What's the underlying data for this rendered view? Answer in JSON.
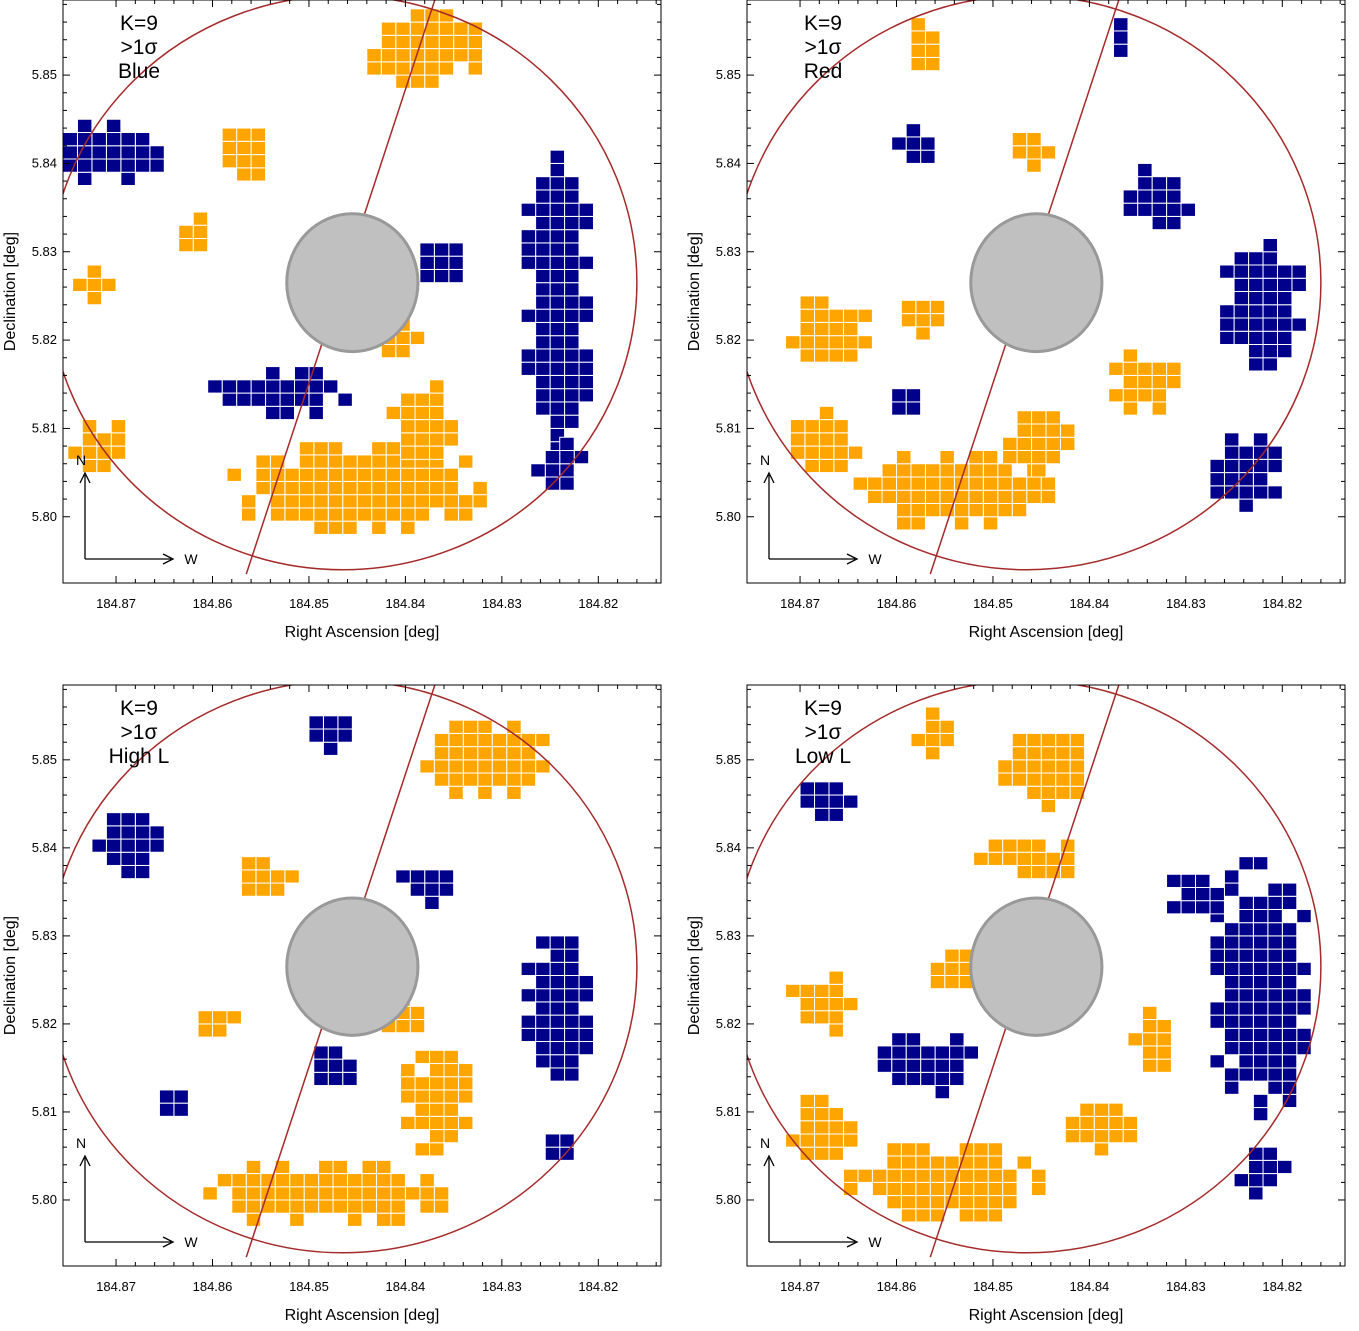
{
  "figure": {
    "background": "#ffffff",
    "colors": {
      "positive_cells": "#ffa500",
      "negative_cells": "#00008b",
      "cell_border": "#ffffff",
      "outline": "#a52a2a",
      "mask": "#c0c0c0",
      "mask_edge": "#999999",
      "axes": "#000000"
    }
  },
  "chart_data": [
    {
      "type": "heatmap",
      "panel": "top-left",
      "annotation": [
        "K=9",
        ">1σ",
        "Blue"
      ],
      "xlabel": "Right Ascension [deg]",
      "ylabel": "Declination [deg]",
      "xlim": [
        184.8755,
        184.8135
      ],
      "ylim": [
        5.7925,
        5.8585
      ],
      "x_ticks": [
        "184.87",
        "184.86",
        "184.85",
        "184.84",
        "184.83",
        "184.82"
      ],
      "y_ticks": [
        "5.80",
        "5.81",
        "5.82",
        "5.83",
        "5.84",
        "5.85"
      ],
      "compass": {
        "north": "N",
        "west": "W"
      },
      "regions": [
        {
          "sign": "positive",
          "center_ra": 184.845,
          "center_dec": 5.803,
          "width_ra": 0.027,
          "height_dec": 0.01
        },
        {
          "sign": "positive",
          "center_ra": 184.871,
          "center_dec": 5.808,
          "width_ra": 0.007,
          "height_dec": 0.006
        },
        {
          "sign": "positive",
          "center_ra": 184.838,
          "center_dec": 5.853,
          "width_ra": 0.012,
          "height_dec": 0.009
        },
        {
          "sign": "positive",
          "center_ra": 184.857,
          "center_dec": 5.841,
          "width_ra": 0.005,
          "height_dec": 0.009
        },
        {
          "sign": "positive",
          "center_ra": 184.838,
          "center_dec": 5.81,
          "width_ra": 0.007,
          "height_dec": 0.01
        },
        {
          "sign": "positive",
          "center_ra": 184.862,
          "center_dec": 5.832,
          "width_ra": 0.003,
          "height_dec": 0.004
        },
        {
          "sign": "positive",
          "center_ra": 184.872,
          "center_dec": 5.826,
          "width_ra": 0.004,
          "height_dec": 0.004
        },
        {
          "sign": "positive",
          "center_ra": 184.84,
          "center_dec": 5.82,
          "width_ra": 0.007,
          "height_dec": 0.004
        },
        {
          "sign": "negative",
          "center_ra": 184.824,
          "center_dec": 5.824,
          "width_ra": 0.007,
          "height_dec": 0.034
        },
        {
          "sign": "negative",
          "center_ra": 184.854,
          "center_dec": 5.814,
          "width_ra": 0.017,
          "height_dec": 0.006
        },
        {
          "sign": "negative",
          "center_ra": 184.87,
          "center_dec": 5.841,
          "width_ra": 0.01,
          "height_dec": 0.007
        },
        {
          "sign": "negative",
          "center_ra": 184.837,
          "center_dec": 5.829,
          "width_ra": 0.006,
          "height_dec": 0.005
        },
        {
          "sign": "negative",
          "center_ra": 184.824,
          "center_dec": 5.806,
          "width_ra": 0.006,
          "height_dec": 0.006
        }
      ],
      "outline": {
        "center_ra": 184.8465,
        "center_dec": 5.8265,
        "radius_ra": 0.0305,
        "radius_dec": 0.0325,
        "line": [
          [
            184.8365,
            5.86
          ],
          [
            184.8565,
            5.7935
          ]
        ]
      },
      "mask": {
        "center_ra": 184.8455,
        "center_dec": 5.8265,
        "radius_ra": 0.0068,
        "radius_dec": 0.0078
      }
    },
    {
      "type": "heatmap",
      "panel": "top-right",
      "annotation": [
        "K=9",
        ">1σ",
        "Red"
      ],
      "xlabel": "Right Ascension [deg]",
      "ylabel": "Declination [deg]",
      "xlim": [
        184.8755,
        184.8135
      ],
      "ylim": [
        5.7925,
        5.8585
      ],
      "x_ticks": [
        "184.87",
        "184.86",
        "184.85",
        "184.84",
        "184.83",
        "184.82"
      ],
      "y_ticks": [
        "5.80",
        "5.81",
        "5.82",
        "5.83",
        "5.84",
        "5.85"
      ],
      "compass": {
        "north": "N",
        "west": "W"
      },
      "regions": [
        {
          "sign": "positive",
          "center_ra": 184.854,
          "center_dec": 5.803,
          "width_ra": 0.021,
          "height_dec": 0.009
        },
        {
          "sign": "positive",
          "center_ra": 184.867,
          "center_dec": 5.809,
          "width_ra": 0.007,
          "height_dec": 0.008
        },
        {
          "sign": "positive",
          "center_ra": 184.845,
          "center_dec": 5.808,
          "width_ra": 0.007,
          "height_dec": 0.007
        },
        {
          "sign": "positive",
          "center_ra": 184.867,
          "center_dec": 5.821,
          "width_ra": 0.009,
          "height_dec": 0.007
        },
        {
          "sign": "positive",
          "center_ra": 184.834,
          "center_dec": 5.815,
          "width_ra": 0.007,
          "height_dec": 0.007
        },
        {
          "sign": "positive",
          "center_ra": 184.857,
          "center_dec": 5.853,
          "width_ra": 0.003,
          "height_dec": 0.008
        },
        {
          "sign": "positive",
          "center_ra": 184.846,
          "center_dec": 5.841,
          "width_ra": 0.005,
          "height_dec": 0.004
        },
        {
          "sign": "positive",
          "center_ra": 184.857,
          "center_dec": 5.822,
          "width_ra": 0.004,
          "height_dec": 0.004
        },
        {
          "sign": "negative",
          "center_ra": 184.822,
          "center_dec": 5.824,
          "width_ra": 0.009,
          "height_dec": 0.015
        },
        {
          "sign": "negative",
          "center_ra": 184.833,
          "center_dec": 5.836,
          "width_ra": 0.008,
          "height_dec": 0.007
        },
        {
          "sign": "negative",
          "center_ra": 184.824,
          "center_dec": 5.805,
          "width_ra": 0.008,
          "height_dec": 0.009
        },
        {
          "sign": "negative",
          "center_ra": 184.837,
          "center_dec": 5.854,
          "width_ra": 0.002,
          "height_dec": 0.004
        },
        {
          "sign": "negative",
          "center_ra": 184.858,
          "center_dec": 5.842,
          "width_ra": 0.004,
          "height_dec": 0.004
        },
        {
          "sign": "negative",
          "center_ra": 184.859,
          "center_dec": 5.813,
          "width_ra": 0.003,
          "height_dec": 0.003
        }
      ],
      "outline": {
        "center_ra": 184.8465,
        "center_dec": 5.8265,
        "radius_ra": 0.0305,
        "radius_dec": 0.0325,
        "line": [
          [
            184.8365,
            5.86
          ],
          [
            184.8565,
            5.7935
          ]
        ]
      },
      "mask": {
        "center_ra": 184.8455,
        "center_dec": 5.8265,
        "radius_ra": 0.0068,
        "radius_dec": 0.0078
      }
    },
    {
      "type": "heatmap",
      "panel": "bottom-left",
      "annotation": [
        "K=9",
        ">1σ",
        "High L"
      ],
      "xlabel": "Right Ascension [deg]",
      "ylabel": "Declination [deg]",
      "xlim": [
        184.8755,
        184.8135
      ],
      "ylim": [
        5.7925,
        5.8585
      ],
      "x_ticks": [
        "184.87",
        "184.86",
        "184.85",
        "184.84",
        "184.83",
        "184.82"
      ],
      "y_ticks": [
        "5.80",
        "5.81",
        "5.82",
        "5.83",
        "5.84",
        "5.85"
      ],
      "compass": {
        "north": "N",
        "west": "W"
      },
      "regions": [
        {
          "sign": "positive",
          "center_ra": 184.848,
          "center_dec": 5.801,
          "width_ra": 0.025,
          "height_dec": 0.008
        },
        {
          "sign": "positive",
          "center_ra": 184.832,
          "center_dec": 5.85,
          "width_ra": 0.014,
          "height_dec": 0.009
        },
        {
          "sign": "positive",
          "center_ra": 184.837,
          "center_dec": 5.811,
          "width_ra": 0.008,
          "height_dec": 0.012
        },
        {
          "sign": "positive",
          "center_ra": 184.855,
          "center_dec": 5.837,
          "width_ra": 0.008,
          "height_dec": 0.005
        },
        {
          "sign": "positive",
          "center_ra": 184.841,
          "center_dec": 5.821,
          "width_ra": 0.006,
          "height_dec": 0.004
        },
        {
          "sign": "positive",
          "center_ra": 184.859,
          "center_dec": 5.82,
          "width_ra": 0.004,
          "height_dec": 0.003
        },
        {
          "sign": "negative",
          "center_ra": 184.824,
          "center_dec": 5.822,
          "width_ra": 0.007,
          "height_dec": 0.017
        },
        {
          "sign": "negative",
          "center_ra": 184.869,
          "center_dec": 5.84,
          "width_ra": 0.008,
          "height_dec": 0.007
        },
        {
          "sign": "negative",
          "center_ra": 184.838,
          "center_dec": 5.836,
          "width_ra": 0.006,
          "height_dec": 0.006
        },
        {
          "sign": "negative",
          "center_ra": 184.848,
          "center_dec": 5.853,
          "width_ra": 0.005,
          "height_dec": 0.005
        },
        {
          "sign": "negative",
          "center_ra": 184.864,
          "center_dec": 5.811,
          "width_ra": 0.003,
          "height_dec": 0.003
        },
        {
          "sign": "negative",
          "center_ra": 184.847,
          "center_dec": 5.815,
          "width_ra": 0.004,
          "height_dec": 0.004
        },
        {
          "sign": "negative",
          "center_ra": 184.824,
          "center_dec": 5.806,
          "width_ra": 0.003,
          "height_dec": 0.003
        }
      ],
      "outline": {
        "center_ra": 184.8465,
        "center_dec": 5.8265,
        "radius_ra": 0.0305,
        "radius_dec": 0.0325,
        "line": [
          [
            184.8365,
            5.86
          ],
          [
            184.8565,
            5.7935
          ]
        ]
      },
      "mask": {
        "center_ra": 184.8455,
        "center_dec": 5.8265,
        "radius_ra": 0.0068,
        "radius_dec": 0.0078
      }
    },
    {
      "type": "heatmap",
      "panel": "bottom-right",
      "annotation": [
        "K=9",
        ">1σ",
        "Low L"
      ],
      "xlabel": "Right Ascension [deg]",
      "ylabel": "Declination [deg]",
      "xlim": [
        184.8755,
        184.8135
      ],
      "ylim": [
        5.7925,
        5.8585
      ],
      "x_ticks": [
        "184.87",
        "184.86",
        "184.85",
        "184.84",
        "184.83",
        "184.82"
      ],
      "y_ticks": [
        "5.80",
        "5.81",
        "5.82",
        "5.83",
        "5.84",
        "5.85"
      ],
      "compass": {
        "north": "N",
        "west": "W"
      },
      "regions": [
        {
          "sign": "positive",
          "center_ra": 184.855,
          "center_dec": 5.802,
          "width_ra": 0.021,
          "height_dec": 0.009
        },
        {
          "sign": "positive",
          "center_ra": 184.868,
          "center_dec": 5.808,
          "width_ra": 0.008,
          "height_dec": 0.007
        },
        {
          "sign": "positive",
          "center_ra": 184.868,
          "center_dec": 5.822,
          "width_ra": 0.008,
          "height_dec": 0.007
        },
        {
          "sign": "positive",
          "center_ra": 184.844,
          "center_dec": 5.849,
          "width_ra": 0.01,
          "height_dec": 0.01
        },
        {
          "sign": "positive",
          "center_ra": 184.846,
          "center_dec": 5.839,
          "width_ra": 0.012,
          "height_dec": 0.005
        },
        {
          "sign": "positive",
          "center_ra": 184.856,
          "center_dec": 5.852,
          "width_ra": 0.004,
          "height_dec": 0.007
        },
        {
          "sign": "positive",
          "center_ra": 184.833,
          "center_dec": 5.818,
          "width_ra": 0.006,
          "height_dec": 0.007
        },
        {
          "sign": "positive",
          "center_ra": 184.839,
          "center_dec": 5.808,
          "width_ra": 0.008,
          "height_dec": 0.006
        },
        {
          "sign": "positive",
          "center_ra": 184.854,
          "center_dec": 5.826,
          "width_ra": 0.004,
          "height_dec": 0.004
        },
        {
          "sign": "negative",
          "center_ra": 184.822,
          "center_dec": 5.824,
          "width_ra": 0.01,
          "height_dec": 0.03
        },
        {
          "sign": "negative",
          "center_ra": 184.857,
          "center_dec": 5.815,
          "width_ra": 0.011,
          "height_dec": 0.007
        },
        {
          "sign": "negative",
          "center_ra": 184.867,
          "center_dec": 5.846,
          "width_ra": 0.006,
          "height_dec": 0.006
        },
        {
          "sign": "negative",
          "center_ra": 184.829,
          "center_dec": 5.835,
          "width_ra": 0.006,
          "height_dec": 0.005
        },
        {
          "sign": "negative",
          "center_ra": 184.822,
          "center_dec": 5.803,
          "width_ra": 0.006,
          "height_dec": 0.006
        }
      ],
      "outline": {
        "center_ra": 184.8465,
        "center_dec": 5.8265,
        "radius_ra": 0.0305,
        "radius_dec": 0.0325,
        "line": [
          [
            184.8365,
            5.86
          ],
          [
            184.8565,
            5.7935
          ]
        ]
      },
      "mask": {
        "center_ra": 184.8455,
        "center_dec": 5.8265,
        "radius_ra": 0.0068,
        "radius_dec": 0.0078
      }
    }
  ]
}
